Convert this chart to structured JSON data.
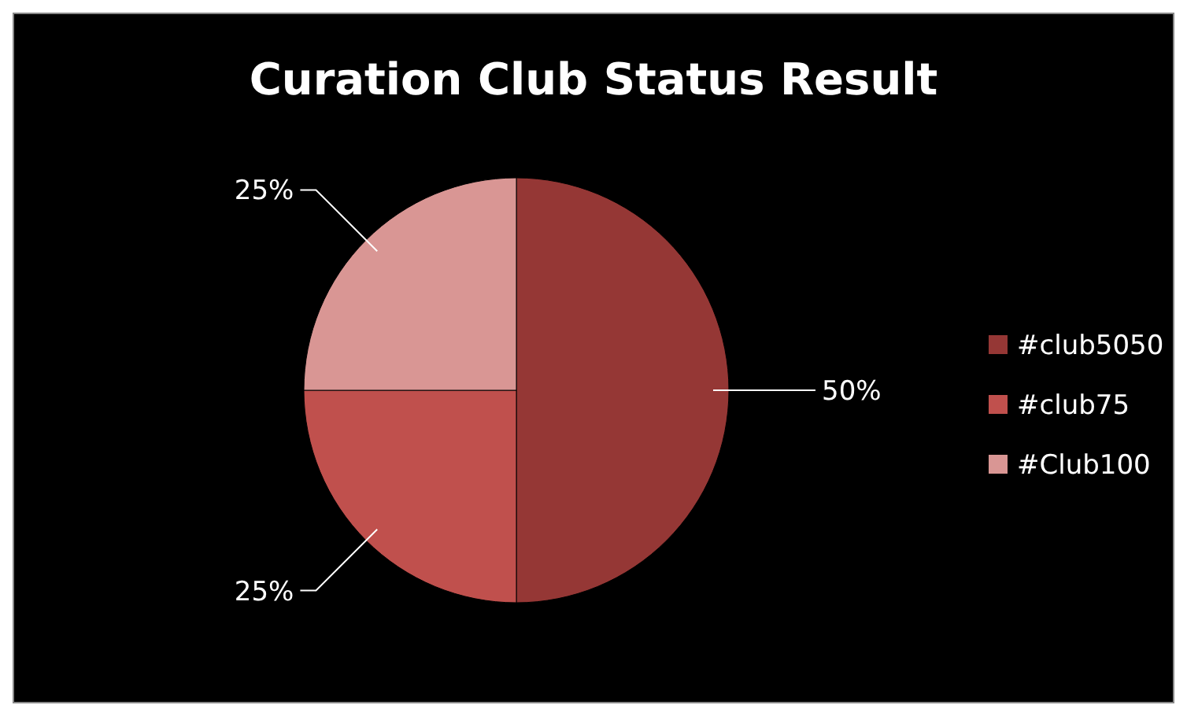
{
  "chart_data": {
    "type": "pie",
    "title": "Curation Club Status Result",
    "categories": [
      "#club5050",
      "#club75",
      "#Club100"
    ],
    "values": [
      50,
      25,
      25
    ],
    "colors": [
      "#953735",
      "#c0504d",
      "#d99694"
    ],
    "value_labels": [
      "50%",
      "25%",
      "25%"
    ],
    "legend": "right"
  }
}
